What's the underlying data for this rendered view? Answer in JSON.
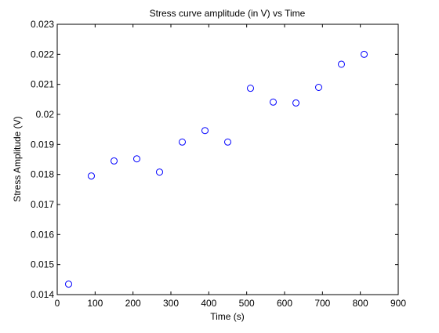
{
  "chart_data": {
    "type": "scatter",
    "title": "Stress curve amplitude (in V) vs Time",
    "xlabel": "Time (s)",
    "ylabel": "Stress Amplitude (V)",
    "xlim": [
      0,
      900
    ],
    "ylim": [
      0.014,
      0.023
    ],
    "xticks": [
      0,
      100,
      200,
      300,
      400,
      500,
      600,
      700,
      800,
      900
    ],
    "xtick_labels": [
      "0",
      "100",
      "200",
      "300",
      "400",
      "500",
      "600",
      "700",
      "800",
      "900"
    ],
    "yticks": [
      0.014,
      0.015,
      0.016,
      0.017,
      0.018,
      0.019,
      0.02,
      0.021,
      0.022,
      0.023
    ],
    "ytick_labels": [
      "0.014",
      "0.015",
      "0.016",
      "0.017",
      "0.018",
      "0.019",
      "0.02",
      "0.021",
      "0.022",
      "0.023"
    ],
    "grid": false,
    "marker": "open-circle",
    "marker_color": "#0000ff",
    "series": [
      {
        "x": [
          30,
          90,
          150,
          210,
          270,
          330,
          390,
          450,
          510,
          570,
          630,
          690,
          750,
          810
        ],
        "y": [
          0.01435,
          0.01795,
          0.01845,
          0.01852,
          0.01808,
          0.01908,
          0.01946,
          0.01908,
          0.02087,
          0.02041,
          0.02038,
          0.0209,
          0.02167,
          0.022
        ]
      }
    ]
  }
}
